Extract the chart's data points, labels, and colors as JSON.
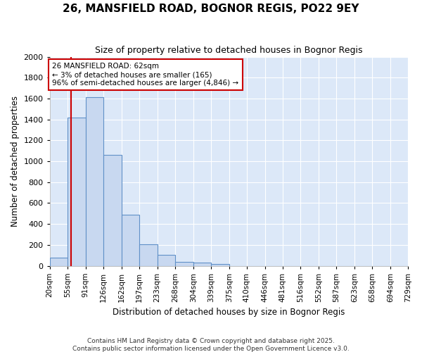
{
  "title": "26, MANSFIELD ROAD, BOGNOR REGIS, PO22 9EY",
  "subtitle": "Size of property relative to detached houses in Bognor Regis",
  "xlabel": "Distribution of detached houses by size in Bognor Regis",
  "ylabel": "Number of detached properties",
  "bar_values": [
    80,
    1420,
    1610,
    1060,
    490,
    205,
    105,
    40,
    30,
    20,
    0,
    0,
    0,
    0,
    0,
    0,
    0,
    0,
    0,
    0
  ],
  "bin_labels": [
    "20sqm",
    "55sqm",
    "91sqm",
    "126sqm",
    "162sqm",
    "197sqm",
    "233sqm",
    "268sqm",
    "304sqm",
    "339sqm",
    "375sqm",
    "410sqm",
    "446sqm",
    "481sqm",
    "516sqm",
    "552sqm",
    "587sqm",
    "623sqm",
    "658sqm",
    "694sqm",
    "729sqm"
  ],
  "bin_edges": [
    20,
    55,
    91,
    126,
    162,
    197,
    233,
    268,
    304,
    339,
    375,
    410,
    446,
    481,
    516,
    552,
    587,
    623,
    658,
    694,
    729
  ],
  "bar_color": "#c8d8f0",
  "bar_edge_color": "#6090c8",
  "property_size": 62,
  "property_line_color": "#cc0000",
  "annotation_text": "26 MANSFIELD ROAD: 62sqm\n← 3% of detached houses are smaller (165)\n96% of semi-detached houses are larger (4,846) →",
  "annotation_box_color": "#ffffff",
  "annotation_box_edge": "#cc0000",
  "ylim": [
    0,
    2000
  ],
  "yticks": [
    0,
    200,
    400,
    600,
    800,
    1000,
    1200,
    1400,
    1600,
    1800,
    2000
  ],
  "plot_bg_color": "#dce8f8",
  "grid_color": "#ffffff",
  "fig_bg_color": "#ffffff",
  "footer1": "Contains HM Land Registry data © Crown copyright and database right 2025.",
  "footer2": "Contains public sector information licensed under the Open Government Licence v3.0."
}
